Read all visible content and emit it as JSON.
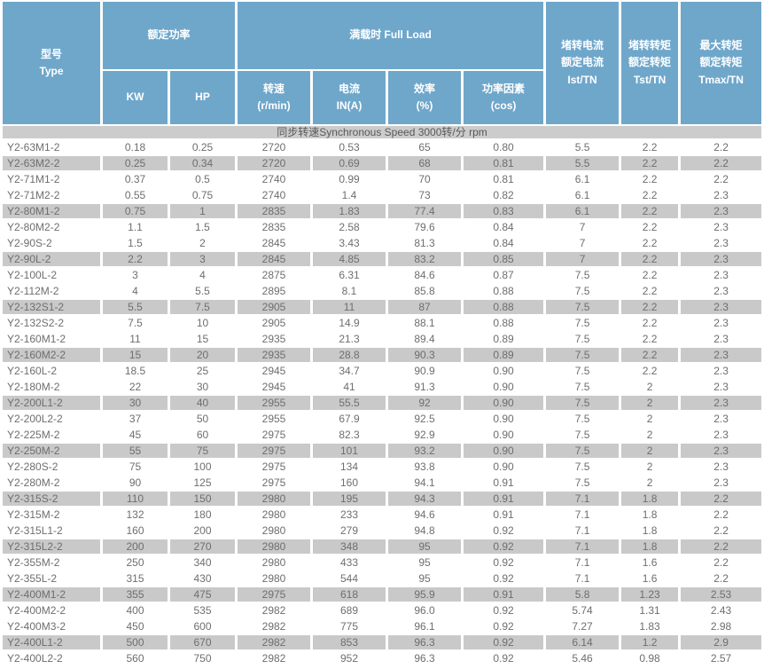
{
  "table": {
    "header": {
      "type": "型号\nType",
      "rated_power": "额定功率",
      "kw": "KW",
      "hp": "HP",
      "full_load": "满载时 Full Load",
      "speed": "转速\n(r/min)",
      "current": "电流\nIN(A)",
      "efficiency": "效率\n(%)",
      "power_factor": "功率因素\n(cos)",
      "locked_rotor_current": "堵转电流\n额定电流\nIst/TN",
      "locked_rotor_torque": "堵转转矩\n额定转矩\nTst/TN",
      "max_torque": "最大转矩\n额定转矩\nTmax/TN"
    },
    "section_row": "同步转速Synchronous Speed 3000转/分 rpm",
    "rows": [
      [
        "Y2-63M1-2",
        "0.18",
        "0.25",
        "2720",
        "0.53",
        "65",
        "0.80",
        "5.5",
        "2.2",
        "2.2"
      ],
      [
        "Y2-63M2-2",
        "0.25",
        "0.34",
        "2720",
        "0.69",
        "68",
        "0.81",
        "5.5",
        "2.2",
        "2.2"
      ],
      [
        "Y2-71M1-2",
        "0.37",
        "0.5",
        "2740",
        "0.99",
        "70",
        "0.81",
        "6.1",
        "2.2",
        "2.2"
      ],
      [
        "Y2-71M2-2",
        "0.55",
        "0.75",
        "2740",
        "1.4",
        "73",
        "0.82",
        "6.1",
        "2.2",
        "2.3"
      ],
      [
        "Y2-80M1-2",
        "0.75",
        "1",
        "2835",
        "1.83",
        "77.4",
        "0.83",
        "6.1",
        "2.2",
        "2.3"
      ],
      [
        "Y2-80M2-2",
        "1.1",
        "1.5",
        "2835",
        "2.58",
        "79.6",
        "0.84",
        "7",
        "2.2",
        "2.3"
      ],
      [
        "Y2-90S-2",
        "1.5",
        "2",
        "2845",
        "3.43",
        "81.3",
        "0.84",
        "7",
        "2.2",
        "2.3"
      ],
      [
        "Y2-90L-2",
        "2.2",
        "3",
        "2845",
        "4.85",
        "83.2",
        "0.85",
        "7",
        "2.2",
        "2.3"
      ],
      [
        "Y2-100L-2",
        "3",
        "4",
        "2875",
        "6.31",
        "84.6",
        "0.87",
        "7.5",
        "2.2",
        "2.3"
      ],
      [
        "Y2-112M-2",
        "4",
        "5.5",
        "2895",
        "8.1",
        "85.8",
        "0.88",
        "7.5",
        "2.2",
        "2.3"
      ],
      [
        "Y2-132S1-2",
        "5.5",
        "7.5",
        "2905",
        "11",
        "87",
        "0.88",
        "7.5",
        "2.2",
        "2.3"
      ],
      [
        "Y2-132S2-2",
        "7.5",
        "10",
        "2905",
        "14.9",
        "88.1",
        "0.88",
        "7.5",
        "2.2",
        "2.3"
      ],
      [
        "Y2-160M1-2",
        "11",
        "15",
        "2935",
        "21.3",
        "89.4",
        "0.89",
        "7.5",
        "2.2",
        "2.3"
      ],
      [
        "Y2-160M2-2",
        "15",
        "20",
        "2935",
        "28.8",
        "90.3",
        "0.89",
        "7.5",
        "2.2",
        "2.3"
      ],
      [
        "Y2-160L-2",
        "18.5",
        "25",
        "2945",
        "34.7",
        "90.9",
        "0.90",
        "7.5",
        "2.2",
        "2.3"
      ],
      [
        "Y2-180M-2",
        "22",
        "30",
        "2945",
        "41",
        "91.3",
        "0.90",
        "7.5",
        "2",
        "2.3"
      ],
      [
        "Y2-200L1-2",
        "30",
        "40",
        "2955",
        "55.5",
        "92",
        "0.90",
        "7.5",
        "2",
        "2.3"
      ],
      [
        "Y2-200L2-2",
        "37",
        "50",
        "2955",
        "67.9",
        "92.5",
        "0.90",
        "7.5",
        "2",
        "2.3"
      ],
      [
        "Y2-225M-2",
        "45",
        "60",
        "2975",
        "82.3",
        "92.9",
        "0.90",
        "7.5",
        "2",
        "2.3"
      ],
      [
        "Y2-250M-2",
        "55",
        "75",
        "2975",
        "101",
        "93.2",
        "0.90",
        "7.5",
        "2",
        "2.3"
      ],
      [
        "Y2-280S-2",
        "75",
        "100",
        "2975",
        "134",
        "93.8",
        "0.90",
        "7.5",
        "2",
        "2.3"
      ],
      [
        "Y2-280M-2",
        "90",
        "125",
        "2975",
        "160",
        "94.1",
        "0.91",
        "7.5",
        "2",
        "2.3"
      ],
      [
        "Y2-315S-2",
        "110",
        "150",
        "2980",
        "195",
        "94.3",
        "0.91",
        "7.1",
        "1.8",
        "2.2"
      ],
      [
        "Y2-315M-2",
        "132",
        "180",
        "2980",
        "233",
        "94.6",
        "0.91",
        "7.1",
        "1.8",
        "2.2"
      ],
      [
        "Y2-315L1-2",
        "160",
        "200",
        "2980",
        "279",
        "94.8",
        "0.92",
        "7.1",
        "1.8",
        "2.2"
      ],
      [
        "Y2-315L2-2",
        "200",
        "270",
        "2980",
        "348",
        "95",
        "0.92",
        "7.1",
        "1.8",
        "2.2"
      ],
      [
        "Y2-355M-2",
        "250",
        "340",
        "2980",
        "433",
        "95",
        "0.92",
        "7.1",
        "1.6",
        "2.2"
      ],
      [
        "Y2-355L-2",
        "315",
        "430",
        "2980",
        "544",
        "95",
        "0.92",
        "7.1",
        "1.6",
        "2.2"
      ],
      [
        "Y2-400M1-2",
        "355",
        "475",
        "2975",
        "618",
        "95.9",
        "0.91",
        "5.8",
        "1.23",
        "2.53"
      ],
      [
        "Y2-400M2-2",
        "400",
        "535",
        "2982",
        "689",
        "96.0",
        "0.92",
        "5.74",
        "1.31",
        "2.43"
      ],
      [
        "Y2-400M3-2",
        "450",
        "600",
        "2982",
        "775",
        "96.1",
        "0.92",
        "7.27",
        "1.83",
        "2.98"
      ],
      [
        "Y2-400L1-2",
        "500",
        "670",
        "2982",
        "853",
        "96.3",
        "0.92",
        "6.14",
        "1.2",
        "2.9"
      ],
      [
        "Y2-400L2-2",
        "560",
        "750",
        "2982",
        "952",
        "96.3",
        "0.92",
        "5.46",
        "0.98",
        "2.57"
      ]
    ],
    "colors": {
      "header_bg": "#6FA7CB",
      "alt_row_bg": "#C9C9C9",
      "section_bg": "#CCCCCC",
      "body_text": "#6E6E6E",
      "section_text": "#595959",
      "header_text": "#FFFFFF"
    }
  }
}
